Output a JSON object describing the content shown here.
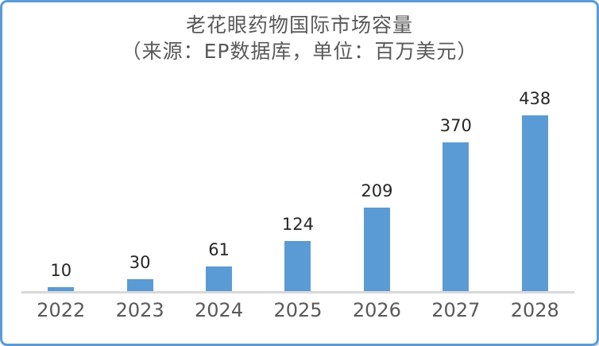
{
  "card": {
    "background": "#ffffff",
    "border_color": "#5B9BD5"
  },
  "chart_data": {
    "type": "bar",
    "title": "老花眼药物国际市场容量",
    "subtitle": "（来源：EP数据库，单位：百万美元）",
    "categories": [
      "2022",
      "2023",
      "2024",
      "2025",
      "2026",
      "2027",
      "2028"
    ],
    "values": [
      10,
      30,
      61,
      124,
      209,
      370,
      438
    ],
    "xlabel": "",
    "ylabel": "",
    "ylim": [
      0,
      440
    ],
    "grid": false,
    "legend": false,
    "data_labels": true,
    "colors": {
      "bar": "#5B9BD5",
      "axis_line": "#D9D9D9",
      "value_label": "#262626",
      "tick_label": "#595959",
      "title_text": "#595959"
    }
  }
}
